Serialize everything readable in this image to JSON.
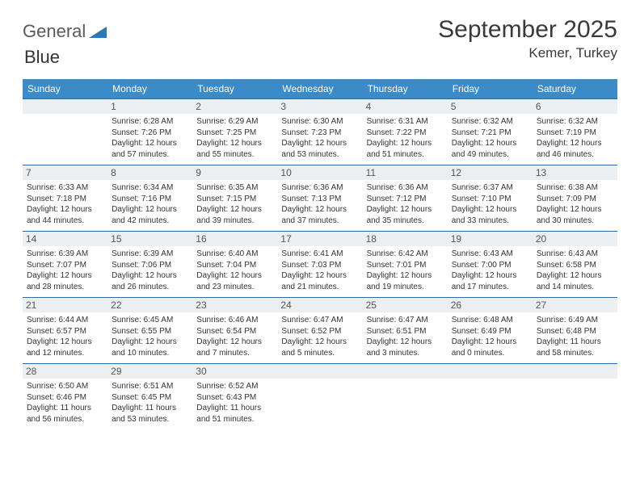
{
  "brand": {
    "part1": "General",
    "part2": "Blue"
  },
  "title": "September 2025",
  "location": "Kemer, Turkey",
  "colors": {
    "header_bg": "#3b8bc8",
    "border": "#2f6aa0",
    "daybar": "#eceff1"
  },
  "dow": [
    "Sunday",
    "Monday",
    "Tuesday",
    "Wednesday",
    "Thursday",
    "Friday",
    "Saturday"
  ],
  "weeks": [
    [
      null,
      {
        "n": "1",
        "sr": "Sunrise: 6:28 AM",
        "ss": "Sunset: 7:26 PM",
        "d1": "Daylight: 12 hours",
        "d2": "and 57 minutes."
      },
      {
        "n": "2",
        "sr": "Sunrise: 6:29 AM",
        "ss": "Sunset: 7:25 PM",
        "d1": "Daylight: 12 hours",
        "d2": "and 55 minutes."
      },
      {
        "n": "3",
        "sr": "Sunrise: 6:30 AM",
        "ss": "Sunset: 7:23 PM",
        "d1": "Daylight: 12 hours",
        "d2": "and 53 minutes."
      },
      {
        "n": "4",
        "sr": "Sunrise: 6:31 AM",
        "ss": "Sunset: 7:22 PM",
        "d1": "Daylight: 12 hours",
        "d2": "and 51 minutes."
      },
      {
        "n": "5",
        "sr": "Sunrise: 6:32 AM",
        "ss": "Sunset: 7:21 PM",
        "d1": "Daylight: 12 hours",
        "d2": "and 49 minutes."
      },
      {
        "n": "6",
        "sr": "Sunrise: 6:32 AM",
        "ss": "Sunset: 7:19 PM",
        "d1": "Daylight: 12 hours",
        "d2": "and 46 minutes."
      }
    ],
    [
      {
        "n": "7",
        "sr": "Sunrise: 6:33 AM",
        "ss": "Sunset: 7:18 PM",
        "d1": "Daylight: 12 hours",
        "d2": "and 44 minutes."
      },
      {
        "n": "8",
        "sr": "Sunrise: 6:34 AM",
        "ss": "Sunset: 7:16 PM",
        "d1": "Daylight: 12 hours",
        "d2": "and 42 minutes."
      },
      {
        "n": "9",
        "sr": "Sunrise: 6:35 AM",
        "ss": "Sunset: 7:15 PM",
        "d1": "Daylight: 12 hours",
        "d2": "and 39 minutes."
      },
      {
        "n": "10",
        "sr": "Sunrise: 6:36 AM",
        "ss": "Sunset: 7:13 PM",
        "d1": "Daylight: 12 hours",
        "d2": "and 37 minutes."
      },
      {
        "n": "11",
        "sr": "Sunrise: 6:36 AM",
        "ss": "Sunset: 7:12 PM",
        "d1": "Daylight: 12 hours",
        "d2": "and 35 minutes."
      },
      {
        "n": "12",
        "sr": "Sunrise: 6:37 AM",
        "ss": "Sunset: 7:10 PM",
        "d1": "Daylight: 12 hours",
        "d2": "and 33 minutes."
      },
      {
        "n": "13",
        "sr": "Sunrise: 6:38 AM",
        "ss": "Sunset: 7:09 PM",
        "d1": "Daylight: 12 hours",
        "d2": "and 30 minutes."
      }
    ],
    [
      {
        "n": "14",
        "sr": "Sunrise: 6:39 AM",
        "ss": "Sunset: 7:07 PM",
        "d1": "Daylight: 12 hours",
        "d2": "and 28 minutes."
      },
      {
        "n": "15",
        "sr": "Sunrise: 6:39 AM",
        "ss": "Sunset: 7:06 PM",
        "d1": "Daylight: 12 hours",
        "d2": "and 26 minutes."
      },
      {
        "n": "16",
        "sr": "Sunrise: 6:40 AM",
        "ss": "Sunset: 7:04 PM",
        "d1": "Daylight: 12 hours",
        "d2": "and 23 minutes."
      },
      {
        "n": "17",
        "sr": "Sunrise: 6:41 AM",
        "ss": "Sunset: 7:03 PM",
        "d1": "Daylight: 12 hours",
        "d2": "and 21 minutes."
      },
      {
        "n": "18",
        "sr": "Sunrise: 6:42 AM",
        "ss": "Sunset: 7:01 PM",
        "d1": "Daylight: 12 hours",
        "d2": "and 19 minutes."
      },
      {
        "n": "19",
        "sr": "Sunrise: 6:43 AM",
        "ss": "Sunset: 7:00 PM",
        "d1": "Daylight: 12 hours",
        "d2": "and 17 minutes."
      },
      {
        "n": "20",
        "sr": "Sunrise: 6:43 AM",
        "ss": "Sunset: 6:58 PM",
        "d1": "Daylight: 12 hours",
        "d2": "and 14 minutes."
      }
    ],
    [
      {
        "n": "21",
        "sr": "Sunrise: 6:44 AM",
        "ss": "Sunset: 6:57 PM",
        "d1": "Daylight: 12 hours",
        "d2": "and 12 minutes."
      },
      {
        "n": "22",
        "sr": "Sunrise: 6:45 AM",
        "ss": "Sunset: 6:55 PM",
        "d1": "Daylight: 12 hours",
        "d2": "and 10 minutes."
      },
      {
        "n": "23",
        "sr": "Sunrise: 6:46 AM",
        "ss": "Sunset: 6:54 PM",
        "d1": "Daylight: 12 hours",
        "d2": "and 7 minutes."
      },
      {
        "n": "24",
        "sr": "Sunrise: 6:47 AM",
        "ss": "Sunset: 6:52 PM",
        "d1": "Daylight: 12 hours",
        "d2": "and 5 minutes."
      },
      {
        "n": "25",
        "sr": "Sunrise: 6:47 AM",
        "ss": "Sunset: 6:51 PM",
        "d1": "Daylight: 12 hours",
        "d2": "and 3 minutes."
      },
      {
        "n": "26",
        "sr": "Sunrise: 6:48 AM",
        "ss": "Sunset: 6:49 PM",
        "d1": "Daylight: 12 hours",
        "d2": "and 0 minutes."
      },
      {
        "n": "27",
        "sr": "Sunrise: 6:49 AM",
        "ss": "Sunset: 6:48 PM",
        "d1": "Daylight: 11 hours",
        "d2": "and 58 minutes."
      }
    ],
    [
      {
        "n": "28",
        "sr": "Sunrise: 6:50 AM",
        "ss": "Sunset: 6:46 PM",
        "d1": "Daylight: 11 hours",
        "d2": "and 56 minutes."
      },
      {
        "n": "29",
        "sr": "Sunrise: 6:51 AM",
        "ss": "Sunset: 6:45 PM",
        "d1": "Daylight: 11 hours",
        "d2": "and 53 minutes."
      },
      {
        "n": "30",
        "sr": "Sunrise: 6:52 AM",
        "ss": "Sunset: 6:43 PM",
        "d1": "Daylight: 11 hours",
        "d2": "and 51 minutes."
      },
      null,
      null,
      null,
      null
    ]
  ]
}
